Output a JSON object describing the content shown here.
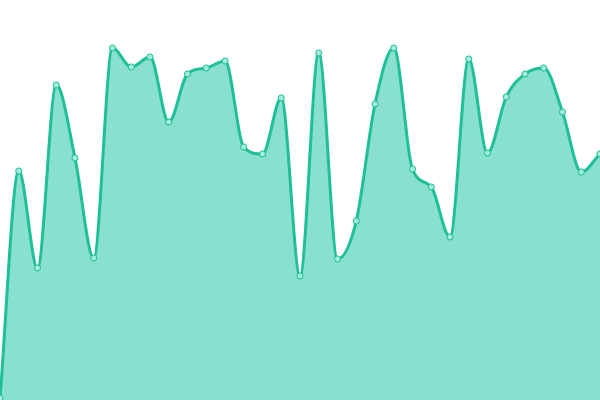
{
  "chart_data": {
    "type": "area",
    "title": "",
    "xlabel": "",
    "ylabel": "",
    "x": [
      0,
      1,
      2,
      3,
      4,
      5,
      6,
      7,
      8,
      9,
      10,
      11,
      12,
      13,
      14,
      15,
      16,
      17,
      18,
      19,
      20,
      21,
      22,
      23,
      24,
      25,
      26,
      27,
      28,
      29,
      30,
      31,
      32
    ],
    "values": [
      2,
      229,
      132,
      315,
      242,
      142,
      352,
      333,
      343,
      278,
      326,
      332,
      339,
      253,
      246,
      302,
      124,
      347,
      141,
      179,
      296,
      352,
      231,
      213,
      163,
      341,
      247,
      303,
      326,
      332,
      288,
      228,
      246
    ],
    "ylim": [
      0,
      400
    ],
    "grid": false,
    "axes_visible": false,
    "smooth": true,
    "markers": true,
    "colors": {
      "line": "#1fbf98",
      "fill": "#8ae0cf",
      "marker_fill": "#a6ebdc"
    }
  }
}
